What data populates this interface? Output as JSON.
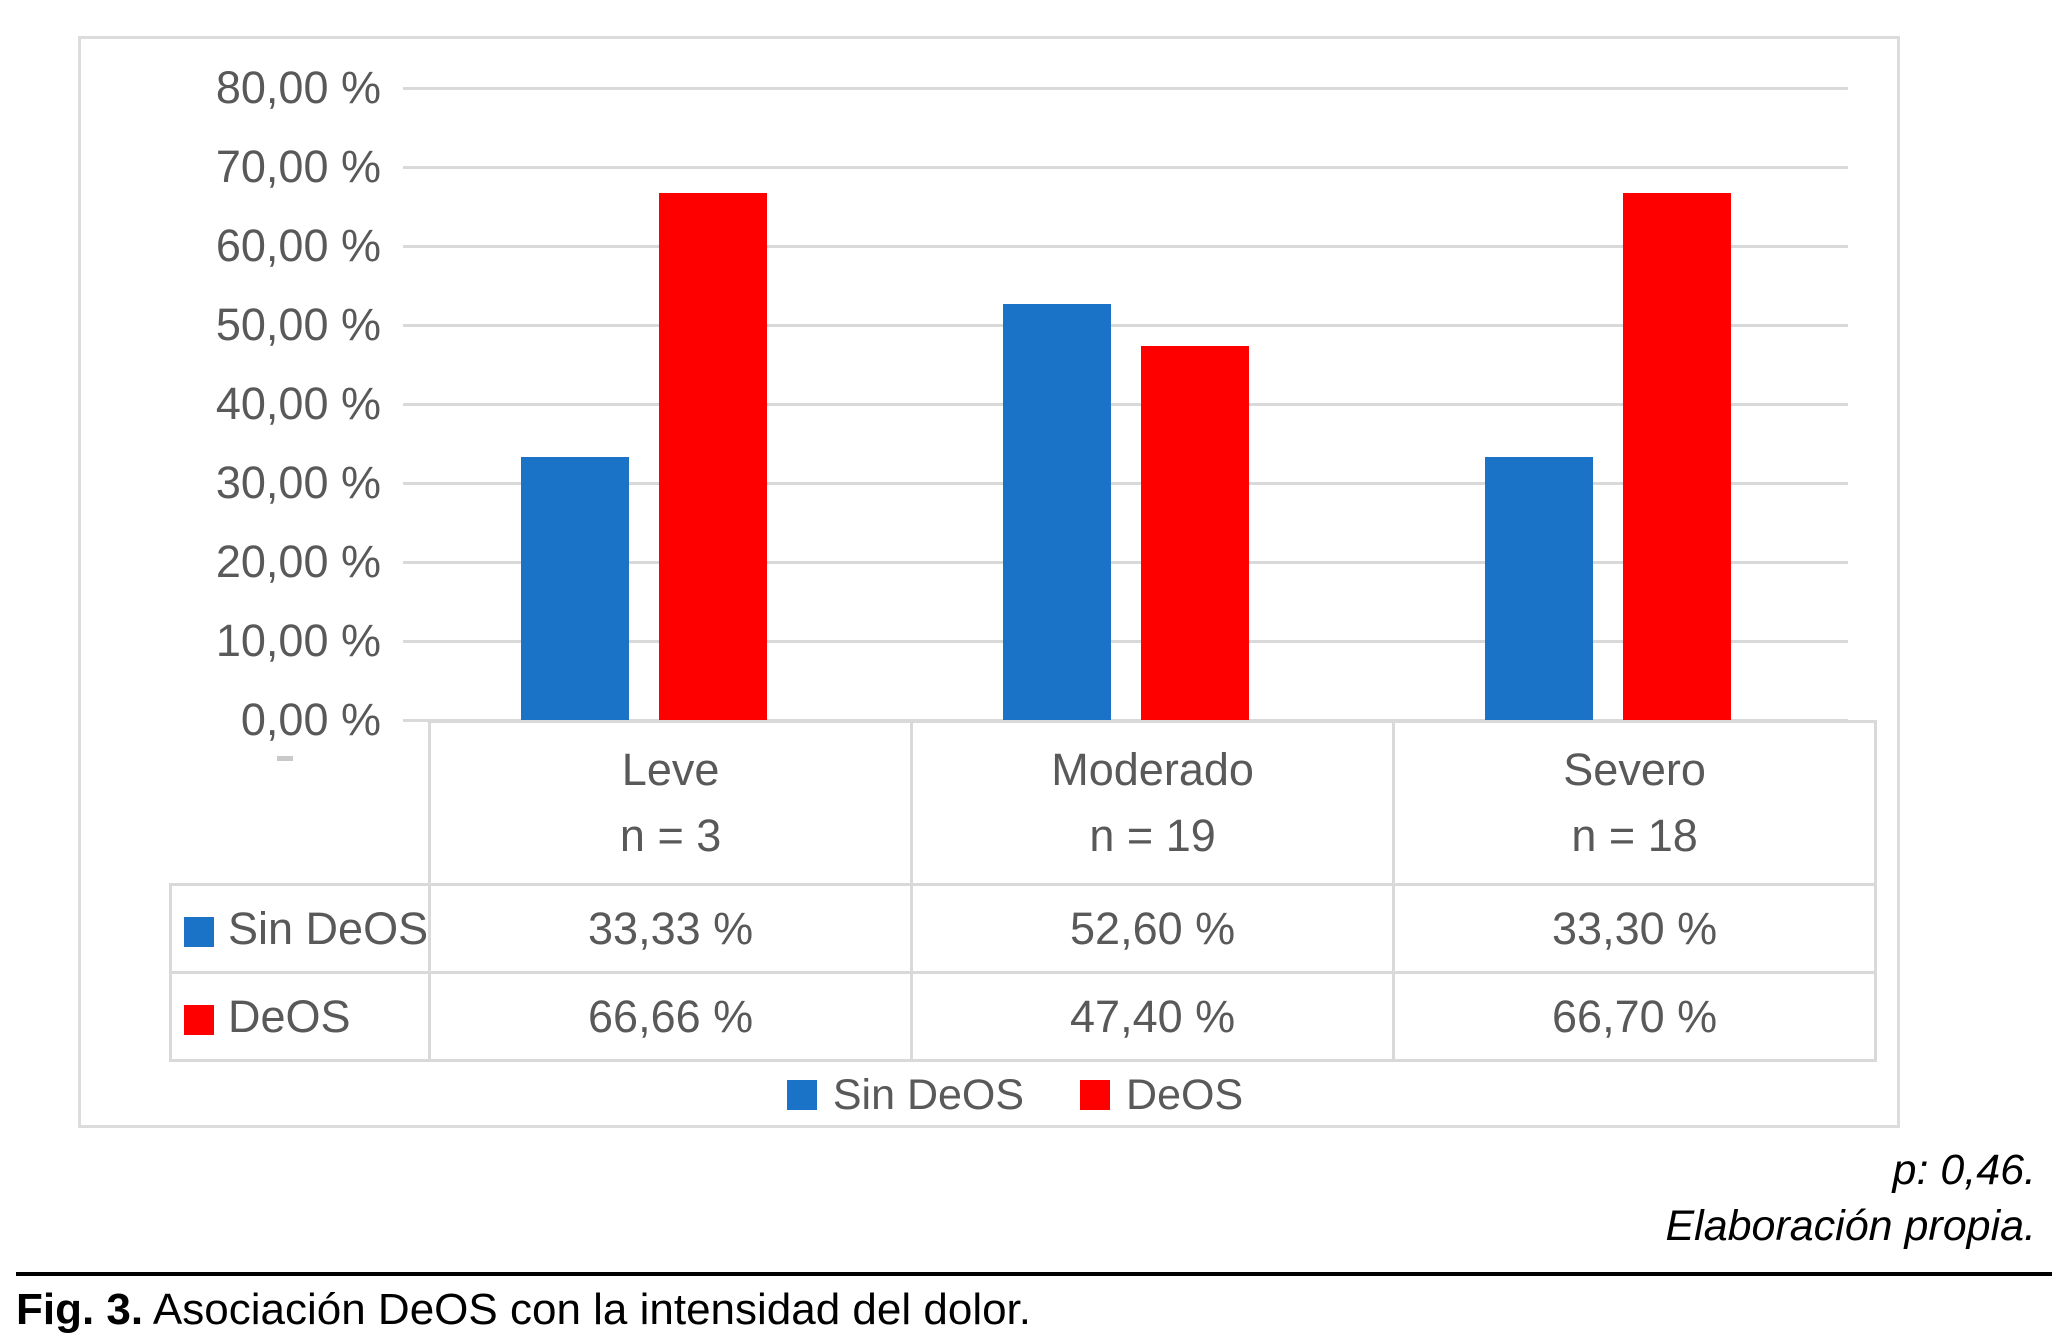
{
  "figure": {
    "caption_label": "Fig. 3.",
    "caption_text": " Asociación DeOS con la intensidad del dolor.",
    "note_p_value": "p: 0,46.",
    "note_source": "Elaboración propia."
  },
  "colors": {
    "sin_deos": "#1B73C8",
    "deos": "#FF0000",
    "grid": "#D9D9D9",
    "axis_text": "#595959"
  },
  "chart_data": {
    "type": "bar",
    "title": "",
    "xlabel": "",
    "ylabel": "",
    "categories": [
      "Leve",
      "Moderado",
      "Severo"
    ],
    "category_n_labels": [
      "n = 3",
      "n = 19",
      "n = 18"
    ],
    "series": [
      {
        "name": "Sin DeOS",
        "color": "#1B73C8",
        "values": [
          33.33,
          52.6,
          33.3
        ],
        "value_labels": [
          "33,33 %",
          "52,60 %",
          "33,30 %"
        ]
      },
      {
        "name": "DeOS",
        "color": "#FF0000",
        "values": [
          66.66,
          47.4,
          66.7
        ],
        "value_labels": [
          "66,66 %",
          "47,40 %",
          "66,70 %"
        ]
      }
    ],
    "ylim": [
      0,
      80
    ],
    "y_tick_labels": [
      "0,00 %",
      "10,00 %",
      "20,00 %",
      "30,00 %",
      "40,00 %",
      "50,00 %",
      "60,00 %",
      "70,00 %",
      "80,00 %"
    ],
    "grid": true,
    "legend_position": "bottom",
    "data_table_shown": true
  }
}
